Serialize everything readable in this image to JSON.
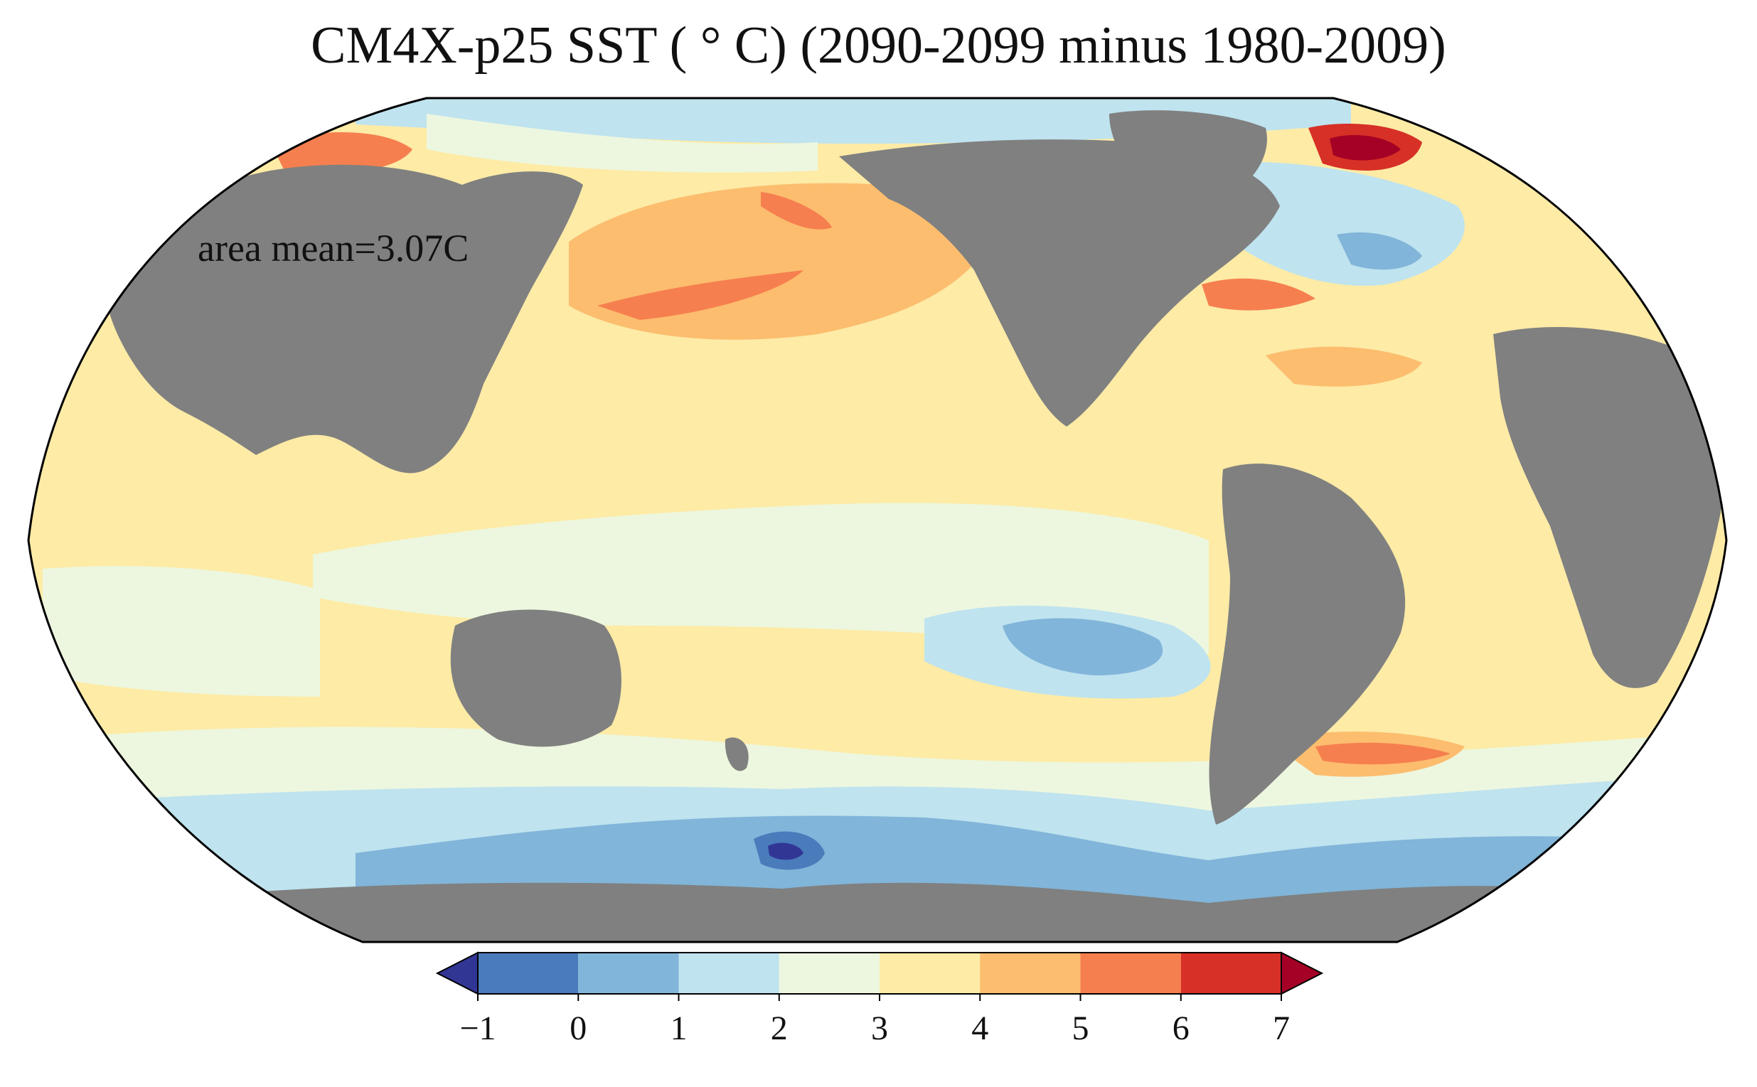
{
  "title": "CM4X-p25 SST ( ° C) (2090-2099 minus 1980-2009)",
  "annotation": "area mean=3.07C",
  "colorbar": {
    "ticks": [
      "−1",
      "0",
      "1",
      "2",
      "3",
      "4",
      "5",
      "6",
      "7"
    ],
    "bins": [
      {
        "from": -1,
        "to": 0,
        "color": "#4a7bbb"
      },
      {
        "from": 0,
        "to": 1,
        "color": "#81b5d9"
      },
      {
        "from": 1,
        "to": 2,
        "color": "#bfe3ef"
      },
      {
        "from": 2,
        "to": 3,
        "color": "#edf7df"
      },
      {
        "from": 3,
        "to": 4,
        "color": "#fdeba6"
      },
      {
        "from": 4,
        "to": 5,
        "color": "#fcbd6e"
      },
      {
        "from": 5,
        "to": 6,
        "color": "#f67f4f"
      },
      {
        "from": 6,
        "to": 7,
        "color": "#d73027"
      }
    ],
    "under_color": "#313695",
    "over_color": "#a50026"
  },
  "land_color": "#808080",
  "ocean_base_color": "#fdeba6"
}
